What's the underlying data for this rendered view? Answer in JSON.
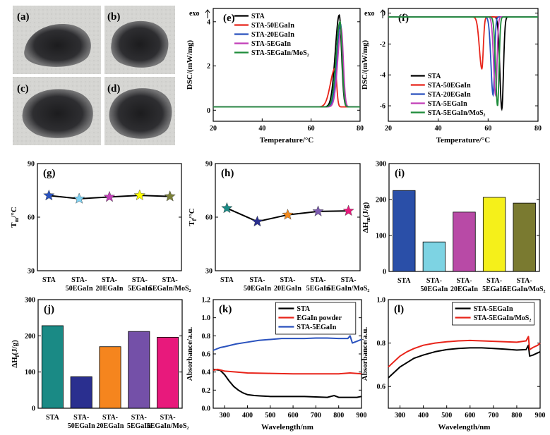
{
  "photos": {
    "tiles": [
      {
        "label": "(a)"
      },
      {
        "label": "(b)"
      },
      {
        "label": "(c)"
      },
      {
        "label": "(d)"
      }
    ]
  },
  "chart_data": [
    {
      "id": "e",
      "panel_label": "(e)",
      "type": "line",
      "title": "",
      "xlabel": "Temperature/°C",
      "ylabel": "DSC/(mW/mg)",
      "exo_label": "exo",
      "xlim": [
        20,
        80
      ],
      "ylim": [
        -0.5,
        4.6
      ],
      "xticks": [
        20,
        40,
        60,
        80
      ],
      "yticks": [
        0,
        2,
        4
      ],
      "legend_position": "top-right",
      "series": [
        {
          "name": "STA",
          "color": "#000000",
          "base": 0.15,
          "peak_x": 71.5,
          "peak_y": 4.3,
          "left_width": 2.3,
          "right_width": 1.3
        },
        {
          "name": "STA-50EGaIn",
          "color": "#e8241a",
          "base": 0.15,
          "peak_x": 69.8,
          "peak_y": 1.9,
          "left_width": 2.7,
          "right_width": 0.9
        },
        {
          "name": "STA-20EGaIn",
          "color": "#2a52be",
          "base": 0.15,
          "peak_x": 72.0,
          "peak_y": 3.9,
          "left_width": 2.1,
          "right_width": 1.2
        },
        {
          "name": "STA-5EGaIn",
          "color": "#c23fb8",
          "base": 0.15,
          "peak_x": 72.3,
          "peak_y": 3.7,
          "left_width": 2.0,
          "right_width": 1.2
        },
        {
          "name": "STA-5EGaIn/MoS₂",
          "color": "#1e8c3a",
          "base": 0.15,
          "peak_x": 71.8,
          "peak_y": 4.0,
          "left_width": 2.2,
          "right_width": 1.2
        }
      ]
    },
    {
      "id": "f",
      "panel_label": "(f)",
      "type": "line",
      "title": "",
      "xlabel": "Temperature/°C",
      "ylabel": "DSC/(mW/mg)",
      "exo_label": "exo",
      "xlim": [
        20,
        80
      ],
      "ylim": [
        -7.0,
        0.3
      ],
      "xticks": [
        20,
        40,
        60,
        80
      ],
      "yticks": [
        0,
        -2,
        -4,
        -6
      ],
      "legend_position": "bottom-right",
      "series": [
        {
          "name": "STA",
          "color": "#000000",
          "base": -0.25,
          "peak_x": 65.5,
          "peak_y": -6.2,
          "left_width": 1.1,
          "right_width": 0.9
        },
        {
          "name": "STA-50EGaIn",
          "color": "#e8241a",
          "base": -0.25,
          "peak_x": 57.5,
          "peak_y": -3.6,
          "left_width": 1.4,
          "right_width": 0.8
        },
        {
          "name": "STA-20EGaIn",
          "color": "#2a52be",
          "base": -0.25,
          "peak_x": 62.0,
          "peak_y": -5.3,
          "left_width": 1.2,
          "right_width": 0.8
        },
        {
          "name": "STA-5EGaIn",
          "color": "#c23fb8",
          "base": -0.25,
          "peak_x": 63.0,
          "peak_y": -5.3,
          "left_width": 1.1,
          "right_width": 0.8
        },
        {
          "name": "STA-5EGaIn/MoS₂",
          "color": "#1e8c3a",
          "base": -0.25,
          "peak_x": 63.8,
          "peak_y": -6.0,
          "left_width": 1.1,
          "right_width": 0.8
        }
      ]
    },
    {
      "id": "g",
      "panel_label": "(g)",
      "type": "scatter",
      "ylabel": "Tm/°C",
      "ylabel_main": "T",
      "ylabel_sub": "m",
      "ylabel_tail": "/°C",
      "ylim": [
        30,
        90
      ],
      "yticks": [
        30,
        60,
        90
      ],
      "categories": [
        "STA",
        "STA-50EGaIn",
        "STA-20EGaIn",
        "STA-5EGaIn",
        "STA-5EGaIn/MoS₂"
      ],
      "category_lines": [
        [
          "STA"
        ],
        [
          "STA-",
          "50EGaIn"
        ],
        [
          "STA-",
          "20EGaIn"
        ],
        [
          "STA-",
          "5EGaIn"
        ],
        [
          "STA-",
          "5EGaIn/MoS₂"
        ]
      ],
      "values": [
        72.1,
        70.3,
        71.3,
        72.2,
        71.6
      ],
      "colors": [
        "#2a52be",
        "#7fd2f2",
        "#c23fb8",
        "#ffff00",
        "#7a8038"
      ]
    },
    {
      "id": "h",
      "panel_label": "(h)",
      "type": "scatter",
      "ylabel": "Tf/°C",
      "ylabel_main": "T",
      "ylabel_sub": "f",
      "ylabel_tail": "/°C",
      "ylim": [
        30,
        90
      ],
      "yticks": [
        30,
        60,
        90
      ],
      "categories": [
        "STA",
        "STA-50EGaIn",
        "STA-20EGaIn",
        "STA-5EGaIn",
        "STA-5EGaIn/MoS₂"
      ],
      "category_lines": [
        [
          "STA"
        ],
        [
          "STA-",
          "50EGaIn"
        ],
        [
          "STA-",
          "20EGaIn"
        ],
        [
          "STA-",
          "5EGaIn"
        ],
        [
          "STA-",
          "5EGaIn/MoS₂"
        ]
      ],
      "values": [
        65.0,
        57.5,
        61.3,
        63.2,
        63.5
      ],
      "colors": [
        "#1a8a85",
        "#2a2f8f",
        "#f28a1e",
        "#7d5bb0",
        "#e8197c"
      ]
    },
    {
      "id": "i",
      "panel_label": "(i)",
      "type": "bar",
      "ylabel": "ΔHm(J/g)",
      "ylabel_main": "ΔH",
      "ylabel_sub": "m",
      "ylabel_tail": "(J/g)",
      "ylim": [
        0,
        300
      ],
      "yticks": [
        0,
        100,
        200,
        300
      ],
      "categories": [
        "STA",
        "STA-50EGaIn",
        "STA-20EGaIn",
        "STA-5EGaIn",
        "STA-5EGaIn/MoS₂"
      ],
      "category_lines": [
        [
          "STA"
        ],
        [
          "STA-",
          "50EGaIn"
        ],
        [
          "STA-",
          "20EGaIn"
        ],
        [
          "STA-",
          "5EGaIn"
        ],
        [
          "STA-",
          "5EGaIn/MoS₂"
        ]
      ],
      "values": [
        225,
        82,
        165,
        206,
        190
      ],
      "colors": [
        "#2a4fa8",
        "#7dd3e3",
        "#b84aa6",
        "#f5f01a",
        "#7a7a30"
      ]
    },
    {
      "id": "j",
      "panel_label": "(j)",
      "type": "bar",
      "ylabel": "ΔHf(J/g)",
      "ylabel_main": "ΔH",
      "ylabel_sub": "f",
      "ylabel_tail": "(J/g)",
      "ylim": [
        0,
        300
      ],
      "yticks": [
        0,
        100,
        200,
        300
      ],
      "categories": [
        "STA",
        "STA-50EGaIn",
        "STA-20EGaIn",
        "STA-5EGaIn",
        "STA-5EGaIn/MoS₂"
      ],
      "category_lines": [
        [
          "STA"
        ],
        [
          "STA-",
          "50EGaIn"
        ],
        [
          "STA-",
          "20EGaIn"
        ],
        [
          "STA-",
          "5EGaIn"
        ],
        [
          "STA-",
          "5EGaIn/MoS₂"
        ]
      ],
      "values": [
        228,
        87,
        170,
        212,
        196
      ],
      "colors": [
        "#1a8a85",
        "#2a2f8f",
        "#f5851e",
        "#7450a8",
        "#e8197c"
      ]
    },
    {
      "id": "k",
      "panel_label": "(k)",
      "type": "line",
      "xlabel": "Wavelength/nm",
      "ylabel": "Absorbance/a.u.",
      "xlim": [
        250,
        900
      ],
      "ylim": [
        0.0,
        1.2
      ],
      "xticks": [
        300,
        400,
        500,
        600,
        700,
        800,
        900
      ],
      "yticks": [
        0.0,
        0.2,
        0.4,
        0.6,
        0.8,
        1.0,
        1.2
      ],
      "legend_position": "top-right",
      "series": [
        {
          "name": "STA",
          "color": "#000000",
          "x": [
            250,
            280,
            300,
            320,
            340,
            360,
            380,
            400,
            430,
            460,
            500,
            550,
            600,
            650,
            700,
            750,
            780,
            800,
            830,
            850,
            880,
            900
          ],
          "y": [
            0.43,
            0.42,
            0.37,
            0.3,
            0.24,
            0.2,
            0.17,
            0.15,
            0.14,
            0.135,
            0.13,
            0.13,
            0.13,
            0.13,
            0.125,
            0.12,
            0.14,
            0.12,
            0.12,
            0.12,
            0.12,
            0.13
          ]
        },
        {
          "name": "EGaIn powder",
          "color": "#e8241a",
          "x": [
            250,
            270,
            300,
            350,
            400,
            500,
            600,
            700,
            800,
            850,
            900
          ],
          "y": [
            0.42,
            0.43,
            0.41,
            0.4,
            0.39,
            0.385,
            0.38,
            0.38,
            0.38,
            0.39,
            0.38
          ]
        },
        {
          "name": "STA-5EGaIn",
          "color": "#2a52be",
          "x": [
            250,
            280,
            300,
            350,
            400,
            450,
            500,
            550,
            600,
            650,
            700,
            750,
            800,
            840,
            850,
            860,
            880,
            900
          ],
          "y": [
            0.64,
            0.67,
            0.68,
            0.71,
            0.73,
            0.75,
            0.76,
            0.77,
            0.77,
            0.77,
            0.775,
            0.775,
            0.77,
            0.77,
            0.8,
            0.72,
            0.74,
            0.76
          ]
        }
      ]
    },
    {
      "id": "l",
      "panel_label": "(l)",
      "type": "line",
      "xlabel": "Wavelength/nm",
      "ylabel": "Absorbance/a.u.",
      "xlim": [
        250,
        900
      ],
      "ylim": [
        0.5,
        1.0
      ],
      "xticks": [
        300,
        400,
        500,
        600,
        700,
        800,
        900
      ],
      "yticks": [
        0.6,
        0.8,
        1.0
      ],
      "legend_position": "top-right",
      "series": [
        {
          "name": "STA-5EGaIn",
          "color": "#000000",
          "x": [
            250,
            270,
            300,
            330,
            360,
            400,
            450,
            500,
            550,
            600,
            650,
            700,
            750,
            800,
            840,
            850,
            855,
            870,
            890,
            900
          ],
          "y": [
            0.64,
            0.66,
            0.69,
            0.71,
            0.73,
            0.745,
            0.76,
            0.77,
            0.775,
            0.778,
            0.778,
            0.775,
            0.772,
            0.768,
            0.77,
            0.79,
            0.74,
            0.745,
            0.755,
            0.76
          ]
        },
        {
          "name": "STA-5EGaIn/MoS₂",
          "color": "#e8241a",
          "x": [
            250,
            270,
            300,
            330,
            360,
            400,
            450,
            500,
            550,
            600,
            650,
            700,
            750,
            800,
            840,
            850,
            855,
            870,
            890,
            900
          ],
          "y": [
            0.69,
            0.71,
            0.74,
            0.76,
            0.775,
            0.79,
            0.8,
            0.806,
            0.81,
            0.812,
            0.81,
            0.808,
            0.806,
            0.804,
            0.81,
            0.83,
            0.77,
            0.78,
            0.79,
            0.8
          ]
        }
      ]
    }
  ]
}
